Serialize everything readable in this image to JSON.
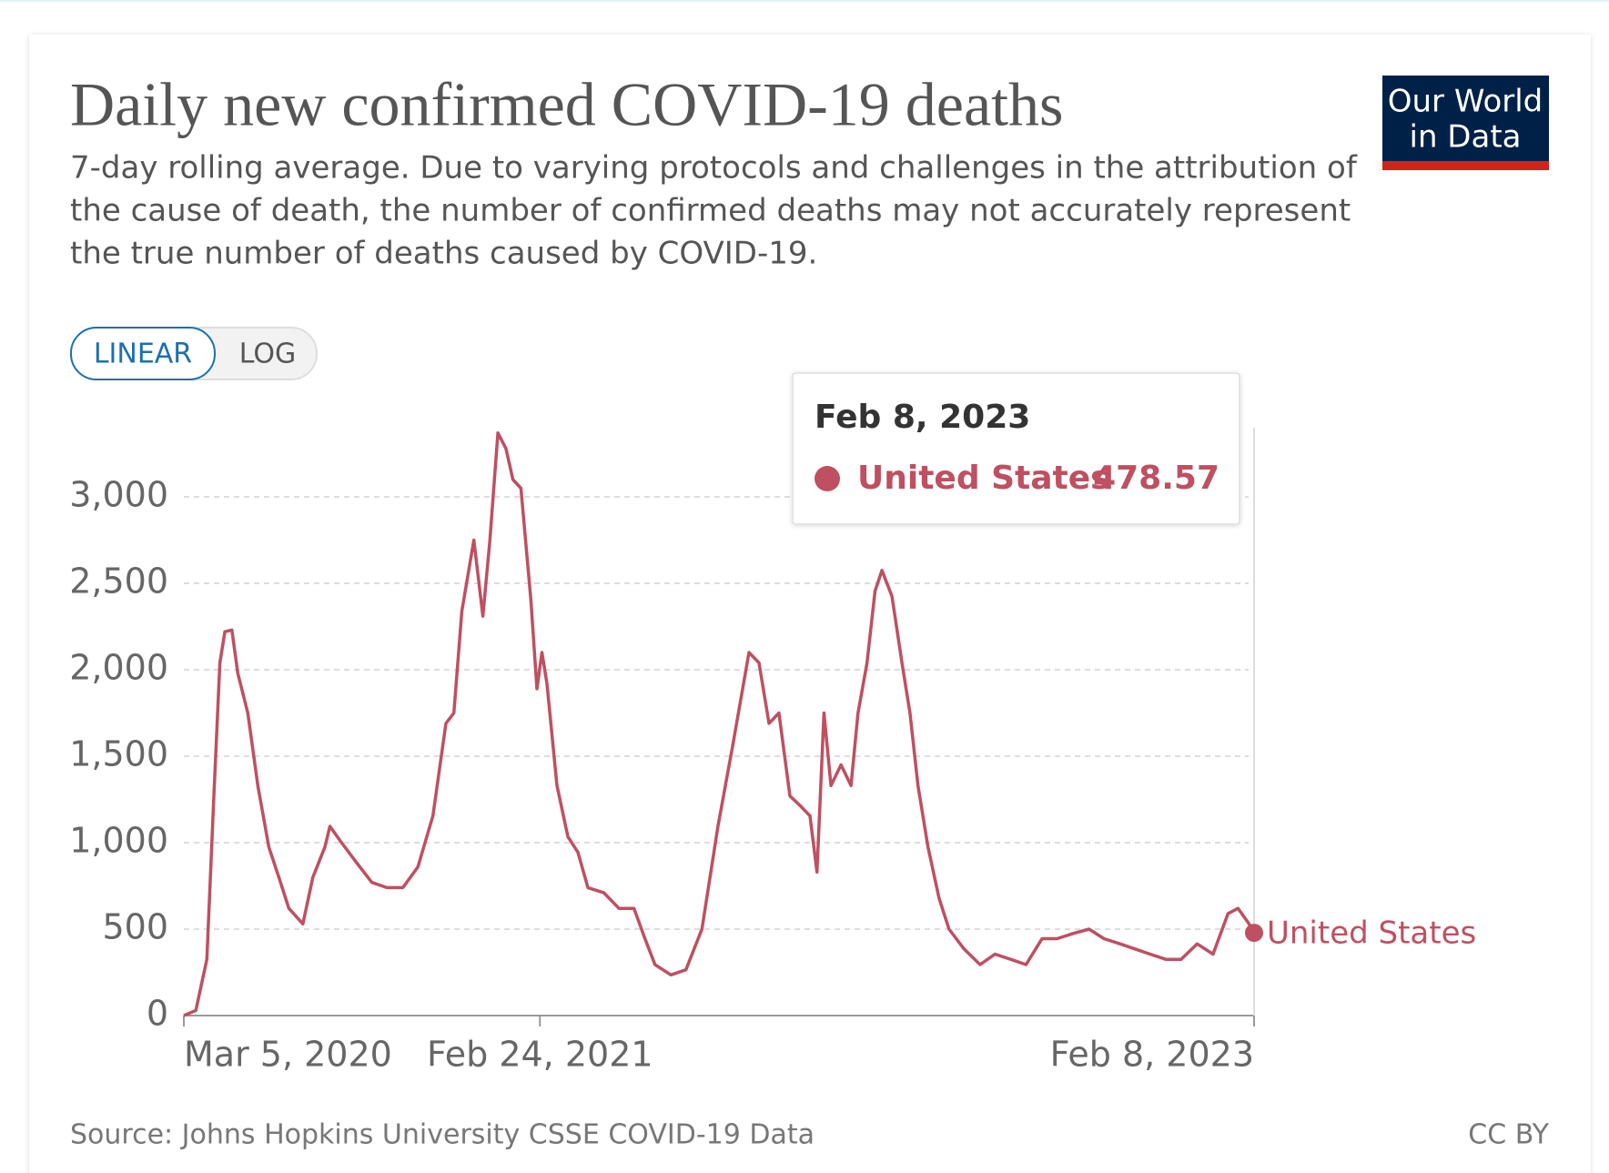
{
  "chart_data": {
    "type": "line",
    "title": "Daily new confirmed COVID-19 deaths",
    "subtitle": [
      "7-day rolling average. Due to varying protocols and challenges in the attribution of",
      "the cause of death, the number of confirmed deaths may not accurately represent",
      "the true number of deaths caused by COVID-19."
    ],
    "logo": [
      "Our World",
      "in Data"
    ],
    "scale_buttons": [
      "LINEAR",
      "LOG"
    ],
    "log_scale": false,
    "grid": true,
    "source": "Source: Johns Hopkins University CSSE COVID-19 Data",
    "license": "CC BY",
    "xlim": [
      "2020-03-05",
      "2023-02-08"
    ],
    "xticks": [
      {
        "value": "2020-03-05",
        "label": "Mar 5, 2020"
      },
      {
        "value": "2021-02-24",
        "label": "Feb 24, 2021"
      },
      {
        "value": "2023-02-08",
        "label": "Feb 8, 2023"
      }
    ],
    "ylim": [
      0,
      3400
    ],
    "yticks": [
      0,
      500,
      {
        "value": 1000,
        "label": "1,000"
      },
      {
        "value": 1500,
        "label": "1,500"
      },
      {
        "value": 2000,
        "label": "2,000"
      },
      {
        "value": 2500,
        "label": "2,500"
      },
      {
        "value": 3000,
        "label": "3,000"
      }
    ],
    "x": [
      "2020-03-05",
      "2020-03-17",
      "2020-03-28",
      "2020-04-04",
      "2020-04-10",
      "2020-04-15",
      "2020-04-22",
      "2020-04-28",
      "2020-05-08",
      "2020-05-18",
      "2020-05-29",
      "2020-06-08",
      "2020-06-18",
      "2020-07-02",
      "2020-07-12",
      "2020-07-24",
      "2020-07-29",
      "2020-08-09",
      "2020-08-24",
      "2020-09-09",
      "2020-09-24",
      "2020-10-10",
      "2020-10-25",
      "2020-11-09",
      "2020-11-22",
      "2020-11-30",
      "2020-12-08",
      "2020-12-20",
      "2020-12-29",
      "2021-01-05",
      "2021-01-13",
      "2021-01-21",
      "2021-01-28",
      "2021-02-05",
      "2021-02-15",
      "2021-02-21",
      "2021-02-26",
      "2021-03-03",
      "2021-03-13",
      "2021-03-24",
      "2021-04-03",
      "2021-04-13",
      "2021-04-29",
      "2021-05-14",
      "2021-05-29",
      "2021-06-09",
      "2021-06-19",
      "2021-07-05",
      "2021-07-20",
      "2021-08-05",
      "2021-08-21",
      "2021-09-05",
      "2021-09-21",
      "2021-10-01",
      "2021-10-11",
      "2021-10-21",
      "2021-11-01",
      "2021-11-11",
      "2021-11-21",
      "2021-11-28",
      "2021-12-05",
      "2021-12-12",
      "2021-12-22",
      "2022-01-01",
      "2022-01-08",
      "2022-01-17",
      "2022-01-25",
      "2022-02-01",
      "2022-02-11",
      "2022-02-21",
      "2022-03-01",
      "2022-03-09",
      "2022-03-19",
      "2022-03-30",
      "2022-04-09",
      "2022-04-24",
      "2022-05-10",
      "2022-05-25",
      "2022-06-10",
      "2022-06-25",
      "2022-07-11",
      "2022-07-26",
      "2022-08-11",
      "2022-08-27",
      "2022-09-11",
      "2022-09-27",
      "2022-10-12",
      "2022-10-27",
      "2022-11-12",
      "2022-11-27",
      "2022-12-13",
      "2022-12-29",
      "2023-01-13",
      "2023-01-23",
      "2023-02-03",
      "2023-02-08"
    ],
    "series": [
      {
        "name": "United States",
        "color": "#be5061",
        "values": [
          0,
          30,
          325,
          1270,
          2040,
          2220,
          2230,
          1980,
          1750,
          1330,
          975,
          800,
          620,
          530,
          800,
          975,
          1095,
          1005,
          890,
          770,
          740,
          740,
          860,
          1155,
          1690,
          1750,
          2340,
          2750,
          2310,
          2750,
          3370,
          3280,
          3100,
          3050,
          2400,
          1890,
          2100,
          1920,
          1330,
          1035,
          945,
          740,
          710,
          620,
          620,
          445,
          295,
          235,
          265,
          500,
          1095,
          1570,
          2100,
          2040,
          1690,
          1750,
          1270,
          1215,
          1155,
          830,
          1750,
          1330,
          1450,
          1330,
          1750,
          2040,
          2455,
          2575,
          2425,
          2040,
          1750,
          1330,
          975,
          680,
          500,
          385,
          295,
          355,
          325,
          295,
          445,
          445,
          475,
          500,
          445,
          415,
          385,
          355,
          325,
          325,
          415,
          355,
          590,
          620,
          530,
          478.57
        ]
      }
    ]
  }
}
